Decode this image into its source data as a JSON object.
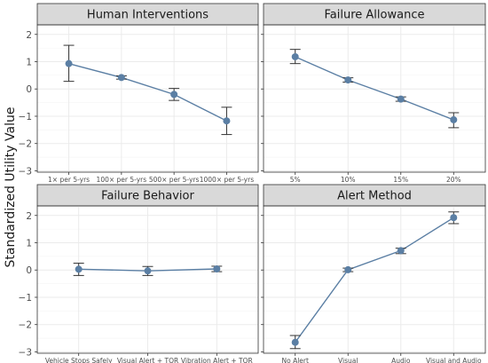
{
  "chart_data": [
    {
      "type": "line",
      "title": "Human Interventions",
      "categories": [
        "1× per 5-yrs",
        "100× per 5-yrs",
        "500× per 5-yrs",
        "1000× per 5-yrs"
      ],
      "values": [
        0.93,
        0.42,
        -0.2,
        -1.17
      ],
      "lower": [
        0.28,
        0.36,
        -0.42,
        -1.67
      ],
      "upper": [
        1.6,
        0.48,
        0.02,
        -0.67
      ]
    },
    {
      "type": "line",
      "title": "Failure Allowance",
      "categories": [
        "5%",
        "10%",
        "15%",
        "20%"
      ],
      "values": [
        1.18,
        0.33,
        -0.37,
        -1.13
      ],
      "lower": [
        0.93,
        0.25,
        -0.45,
        -1.42
      ],
      "upper": [
        1.45,
        0.41,
        -0.29,
        -0.87
      ]
    },
    {
      "type": "line",
      "title": "Failure Behavior",
      "categories": [
        "Vehicle Stops Safely",
        "Visual Alert + TOR",
        "Vibration Alert + TOR"
      ],
      "values": [
        0.03,
        -0.03,
        0.04
      ],
      "lower": [
        -0.2,
        -0.2,
        -0.06
      ],
      "upper": [
        0.25,
        0.13,
        0.14
      ]
    },
    {
      "type": "line",
      "title": "Alert Method",
      "categories": [
        "No Alert",
        "Visual",
        "Audio",
        "Visual and Audio"
      ],
      "values": [
        -2.65,
        0.01,
        0.71,
        1.92
      ],
      "lower": [
        -2.88,
        -0.06,
        0.6,
        1.7
      ],
      "upper": [
        -2.4,
        0.07,
        0.8,
        2.13
      ]
    }
  ],
  "ylabel": "Standardized Utility Value",
  "yticks_top": [
    2,
    1,
    0,
    -1,
    -2,
    -3
  ],
  "yticks_bottom": [
    2,
    1,
    0,
    -1,
    -2,
    -3
  ],
  "ylim_top": [
    -3.05,
    2.35
  ],
  "ylim_bottom": [
    -3.05,
    2.35
  ],
  "colors": {
    "series": "#5b7fa4",
    "errorbar": "#333333",
    "strip_fill": "#d9d9d9",
    "grid": "#ebebeb",
    "border": "#333333"
  }
}
